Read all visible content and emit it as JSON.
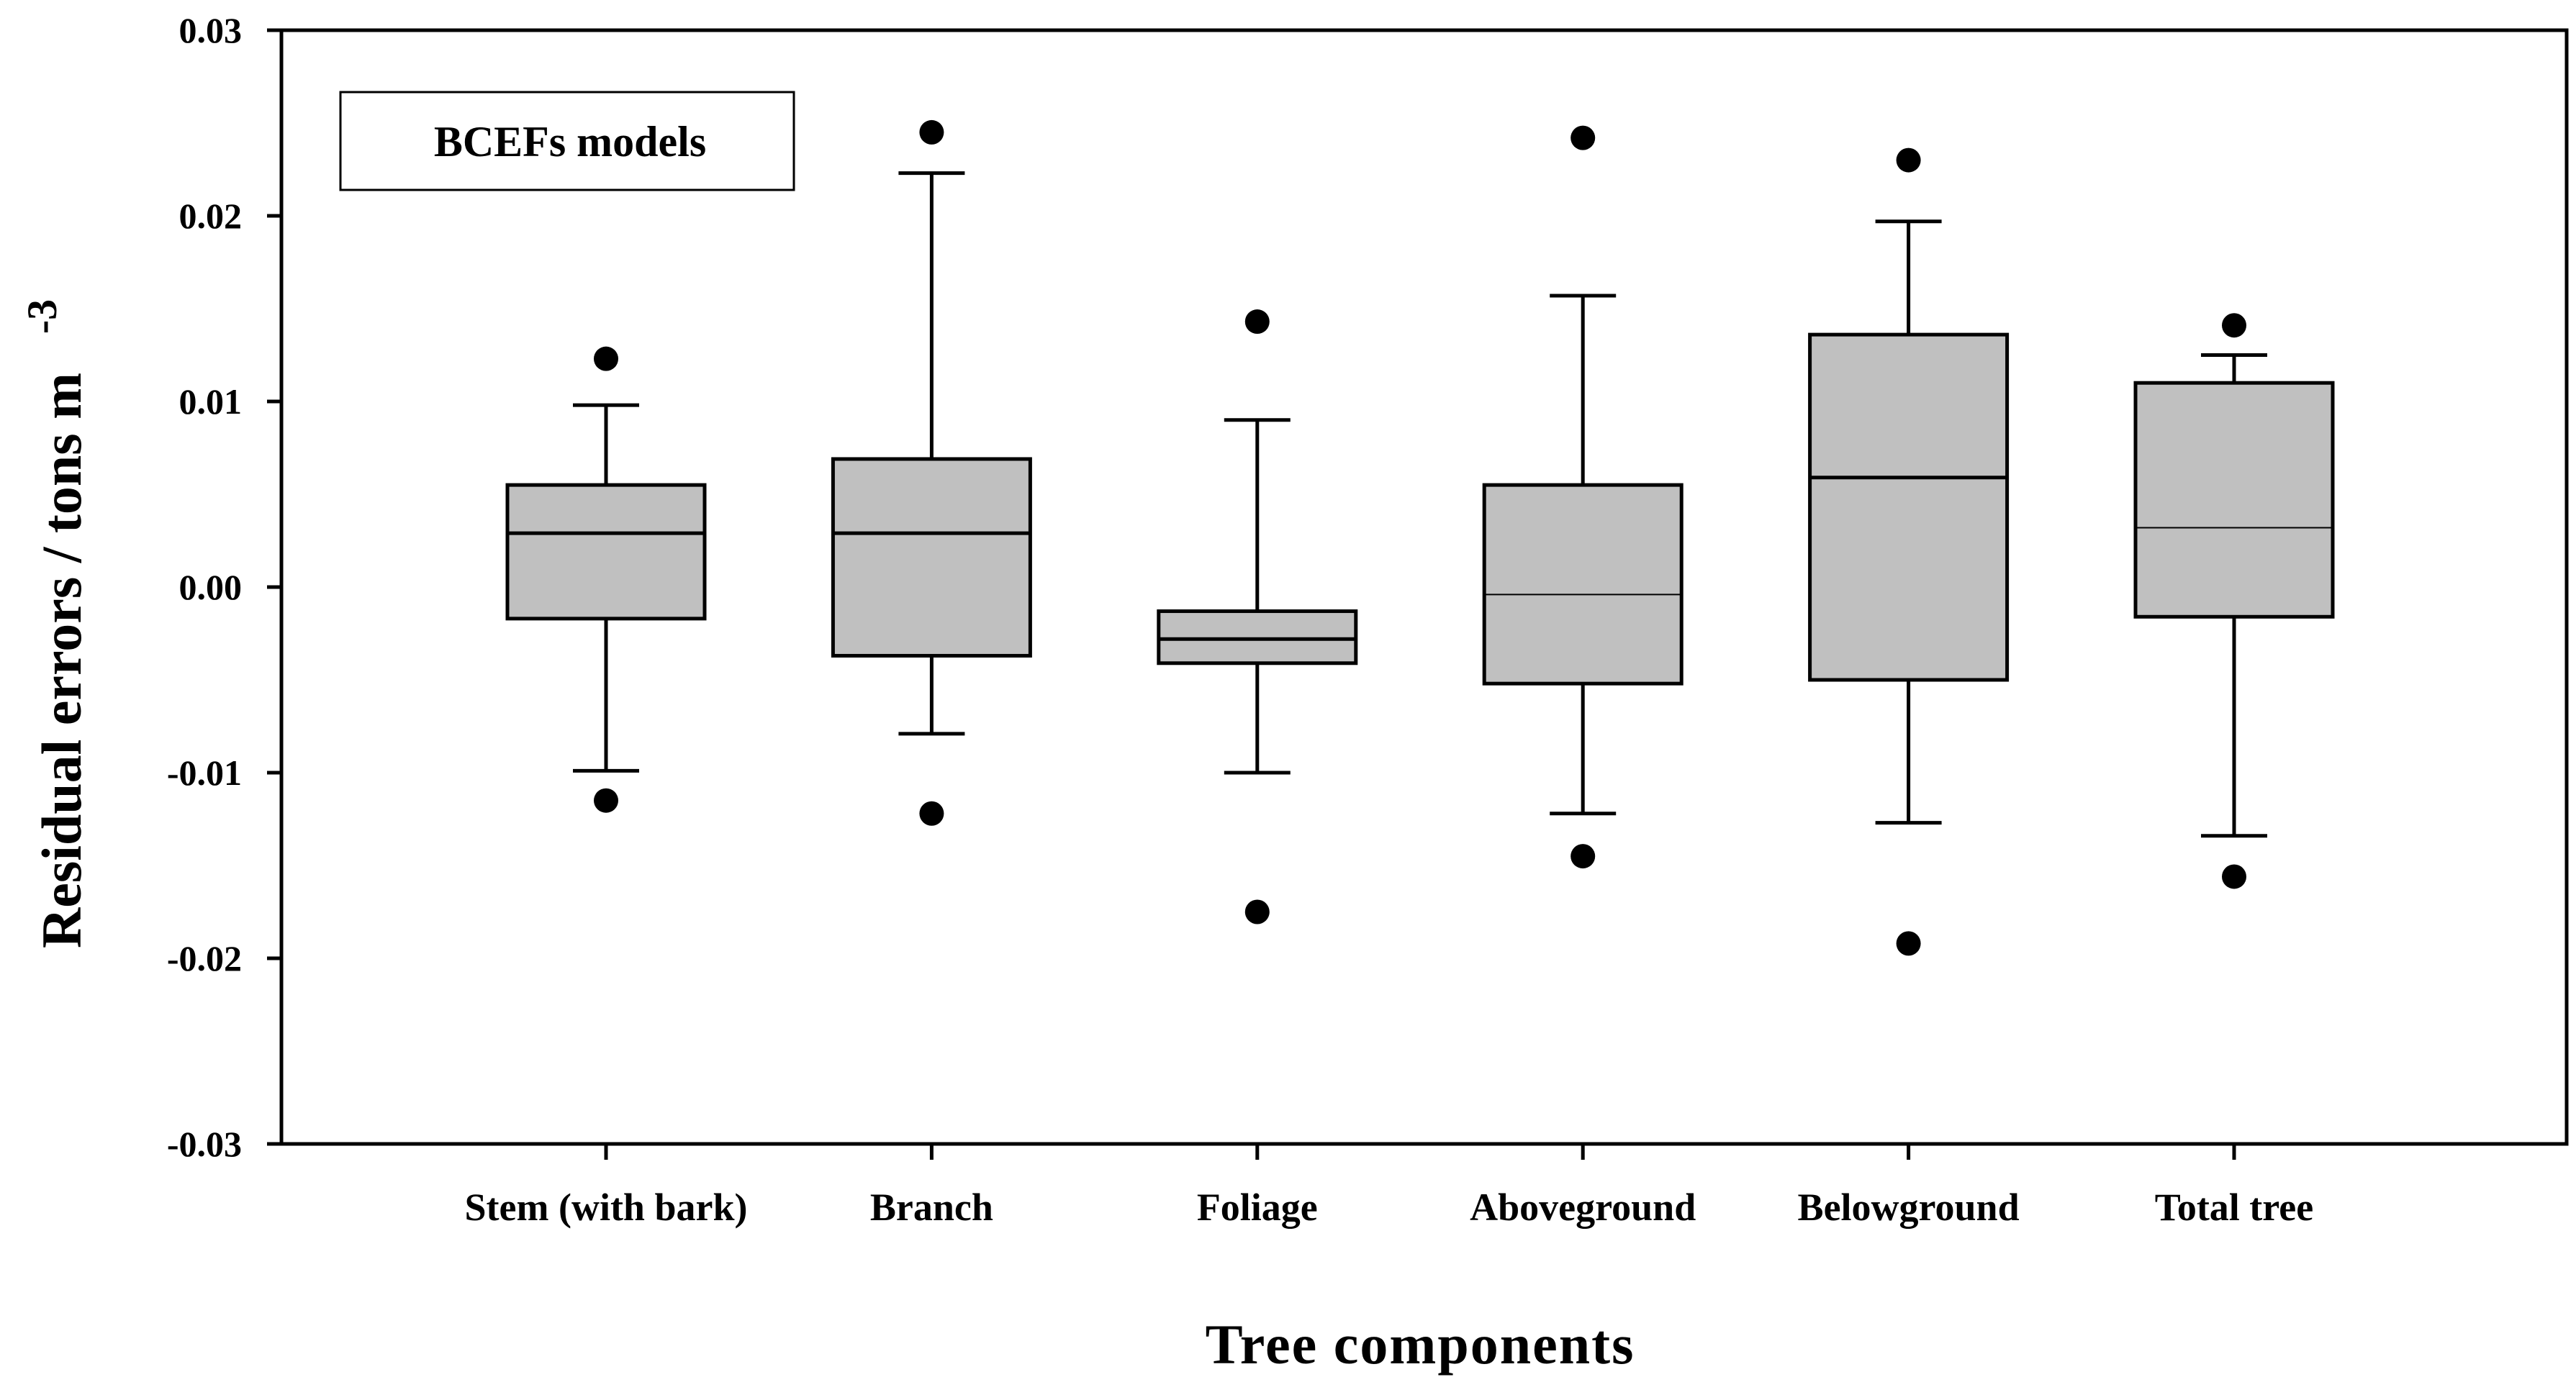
{
  "chart_data": {
    "type": "box",
    "legend_box_text": "BCEFs models",
    "xlabel": "Tree components",
    "ylabel": "Residual errors / tons m",
    "ylabel_superscript": "-3",
    "ylim": [
      -0.03,
      0.03
    ],
    "yticks": [
      -0.03,
      -0.02,
      -0.01,
      0.0,
      0.01,
      0.02,
      0.03
    ],
    "ytick_labels": [
      "-0.03",
      "-0.02",
      "-0.01",
      "0.00",
      "0.01",
      "0.02",
      "0.03"
    ],
    "grid": false,
    "box_fill": "#c0c0c0",
    "categories": [
      "Stem (with bark)",
      "Branch",
      "Foliage",
      "Aboveground",
      "Belowground",
      "Total tree"
    ],
    "boxes": [
      {
        "whisker_low": -0.0099,
        "q1": -0.0017,
        "median": 0.0029,
        "q3": 0.0055,
        "whisker_high": 0.0098,
        "outliers": [
          0.0123,
          -0.0115
        ]
      },
      {
        "whisker_low": -0.0079,
        "q1": -0.0037,
        "median": 0.0029,
        "q3": 0.0069,
        "whisker_high": 0.0223,
        "outliers": [
          0.0245,
          -0.0122
        ]
      },
      {
        "whisker_low": -0.01,
        "q1": -0.0041,
        "median": -0.0028,
        "q3": -0.0013,
        "whisker_high": 0.009,
        "outliers": [
          0.0143,
          -0.0175
        ]
      },
      {
        "whisker_low": -0.0122,
        "q1": -0.0052,
        "median": -0.0004,
        "q3": 0.0055,
        "whisker_high": 0.0157,
        "outliers": [
          0.0242,
          -0.0145
        ]
      },
      {
        "whisker_low": -0.0127,
        "q1": -0.005,
        "median": 0.0059,
        "q3": 0.0136,
        "whisker_high": 0.0197,
        "outliers": [
          0.023,
          -0.0192
        ]
      },
      {
        "whisker_low": -0.0134,
        "q1": -0.0016,
        "median": 0.0032,
        "q3": 0.011,
        "whisker_high": 0.0125,
        "outliers": [
          0.0141,
          -0.0156
        ]
      }
    ]
  }
}
